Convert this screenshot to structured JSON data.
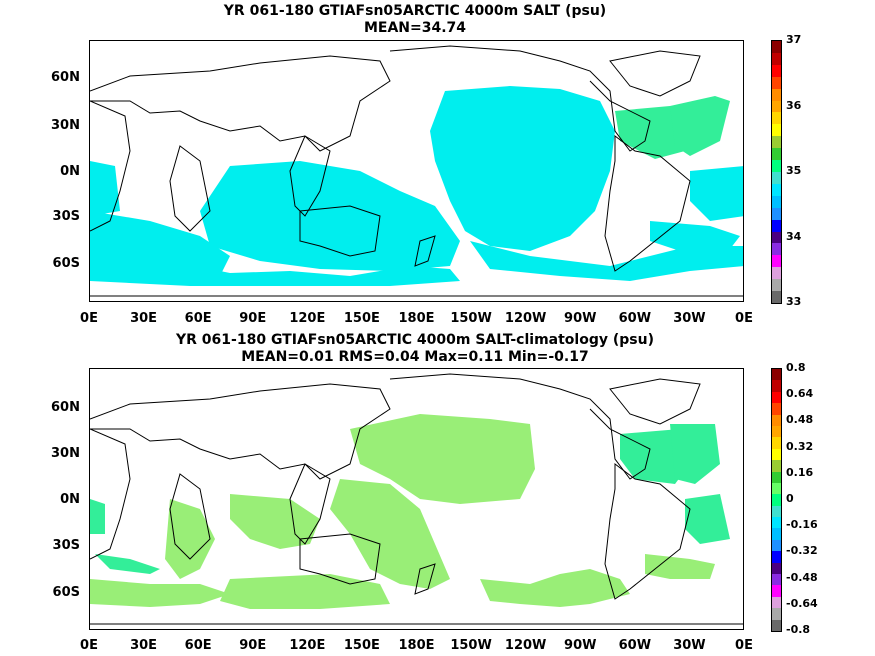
{
  "panel1": {
    "title_line1": "YR 061-180 GTIAFsn05ARCTIC 4000m SALT (psu)",
    "title_line2": "MEAN=34.74",
    "colorbar_labels": [
      "37",
      "36",
      "35",
      "34",
      "33"
    ],
    "colorbar_colors": [
      "#8b0000",
      "#c00000",
      "#ff0000",
      "#ff4500",
      "#ff8c00",
      "#ffa500",
      "#ffd700",
      "#ffff00",
      "#9acd32",
      "#32cd32",
      "#00ff7f",
      "#40e0d0",
      "#00e5ff",
      "#00bfff",
      "#1e90ff",
      "#0000ff",
      "#4b0082",
      "#8a2be2",
      "#ff00ff",
      "#dda0dd",
      "#a9a9a9",
      "#696969"
    ]
  },
  "panel2": {
    "title_line1": "YR 061-180 GTIAFsn05ARCTIC 4000m SALT-climatology (psu)",
    "title_line2": "MEAN=0.01   RMS=0.04   Max=0.11   Min=-0.17",
    "colorbar_labels": [
      "0.8",
      "0.64",
      "0.48",
      "0.32",
      "0.16",
      "0",
      "-0.16",
      "-0.32",
      "-0.48",
      "-0.64",
      "-0.8"
    ],
    "colorbar_colors": [
      "#8b0000",
      "#c00000",
      "#ff0000",
      "#ff4500",
      "#ff8c00",
      "#ffa500",
      "#ffd700",
      "#ffff00",
      "#9acd32",
      "#32cd32",
      "#66ff66",
      "#00ff7f",
      "#40e0d0",
      "#00e5ff",
      "#00bfff",
      "#1e90ff",
      "#0000ff",
      "#4b0082",
      "#8a2be2",
      "#ff00ff",
      "#dda0dd",
      "#a9a9a9",
      "#696969"
    ]
  },
  "lat_labels": [
    "60N",
    "30N",
    "0N",
    "30S",
    "60S"
  ],
  "lon_labels": [
    "0E",
    "30E",
    "60E",
    "90E",
    "120E",
    "150E",
    "180E",
    "150W",
    "120W",
    "90W",
    "60W",
    "30W",
    "0E"
  ],
  "colors": {
    "panel1_fill": "#00ffff",
    "panel1_atlantic": "#33ee99",
    "panel2_fill": "#99ee77",
    "panel2_atlantic": "#33ee99",
    "land_outline": "#000000"
  }
}
